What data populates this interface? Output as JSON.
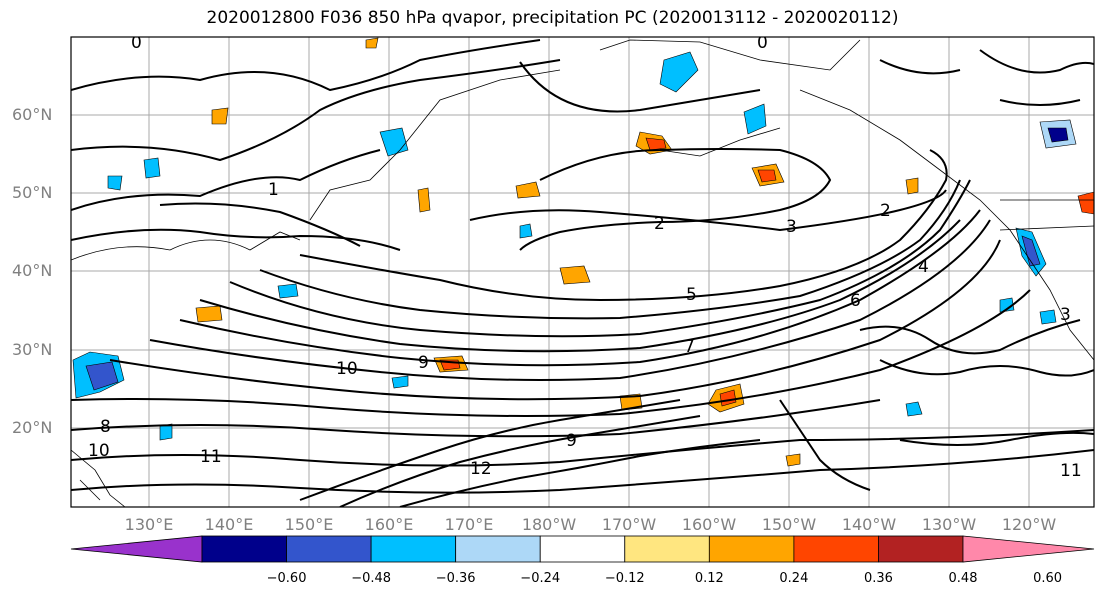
{
  "title": "2020012800 F036 850 hPa qvapor, precipitation PC (2020013112 - 2020020112)",
  "latitude_labels": [
    "60°N",
    "50°N",
    "40°N",
    "30°N",
    "20°N"
  ],
  "longitude_labels": [
    "130°E",
    "140°E",
    "150°E",
    "160°E",
    "170°E",
    "180°W",
    "170°W",
    "160°W",
    "150°W",
    "140°W",
    "130°W",
    "120°W"
  ],
  "colorbar": {
    "ticks": [
      "−0.60",
      "−0.48",
      "−0.36",
      "−0.24",
      "−0.12",
      "0.12",
      "0.24",
      "0.36",
      "0.48",
      "0.60"
    ],
    "colors": [
      "#9932cc",
      "#00008b",
      "#3355cc",
      "#00bfff",
      "#add8f7",
      "#ffffff",
      "#ffe680",
      "#ffa500",
      "#ff4500",
      "#b22222",
      "#ff88aa"
    ]
  },
  "contour_labels": [
    "0",
    "1",
    "2",
    "3",
    "4",
    "5",
    "6",
    "7",
    "8",
    "9",
    "10",
    "11",
    "12"
  ],
  "map_colors": {
    "contour": "#000000",
    "grid": "#a0a0a0",
    "frame": "#000000"
  }
}
